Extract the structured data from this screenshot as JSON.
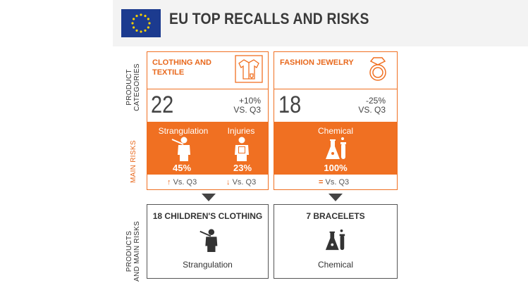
{
  "header": {
    "title": "EU TOP RECALLS AND RISKS",
    "flag_icon": "eu-flag-icon"
  },
  "side_labels": {
    "categories": [
      "PRODUCT",
      "CATEGORIES"
    ],
    "risks": "MAIN RISKS",
    "products": [
      "PRODUCTS",
      "AND MAIN RISKS"
    ]
  },
  "categories": [
    {
      "label_line1": "CLOTHING AND",
      "label_line2": "TEXTILE",
      "icon": "shirt-icon",
      "count": "22",
      "change": "+10%",
      "change_ref": "VS. Q3",
      "risks": [
        {
          "label": "Strangulation",
          "percent": "45%",
          "icon": "strangulation-icon",
          "trend": "↑",
          "trend_text": "Vs. Q3"
        },
        {
          "label": "Injuries",
          "percent": "23%",
          "icon": "injury-icon",
          "trend": "↓",
          "trend_text": "Vs. Q3"
        }
      ],
      "product": {
        "title": "18 CHILDREN'S CLOTHING",
        "risk": "Strangulation",
        "icon": "strangulation-icon"
      }
    },
    {
      "label_line1": "FASHION JEWELRY",
      "icon": "ring-icon",
      "count": "18",
      "change": "-25%",
      "change_ref": "VS. Q3",
      "risks": [
        {
          "label": "Chemical",
          "percent": "100%",
          "icon": "chemical-icon",
          "trend": "=",
          "trend_text": "Vs. Q3"
        }
      ],
      "product": {
        "title": "7 BRACELETS",
        "risk": "Chemical",
        "icon": "chemical-icon"
      }
    }
  ],
  "colors": {
    "accent": "#f07022",
    "header_bg": "#f3f3f3",
    "flag_blue": "#1c3b8f",
    "flag_stars": "#f5d000",
    "icon_dark": "#333333"
  }
}
